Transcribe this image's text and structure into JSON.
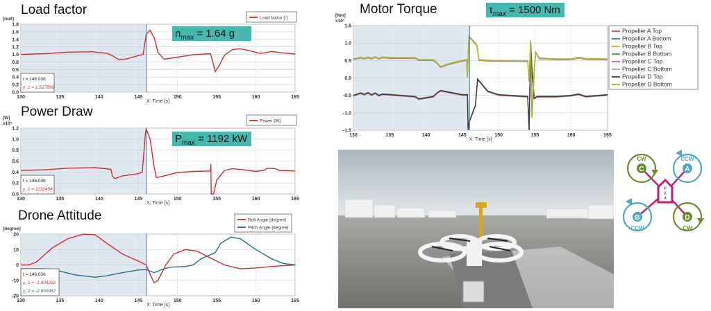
{
  "panels": {
    "load_factor": {
      "title": "Load factor",
      "badge_main": "n",
      "badge_sub": "max",
      "badge_rest": " = 1.64 g"
    },
    "power": {
      "title": "Power Draw",
      "badge_main": "P",
      "badge_sub": "max",
      "badge_rest": " = 1192 kW"
    },
    "attitude": {
      "title": "Drone Attitude"
    },
    "torque": {
      "title": "Motor Torque",
      "badge_main": "τ",
      "badge_sub": "max",
      "badge_rest": " =  1500 Nm"
    }
  },
  "quad_diagram": {
    "rotors": [
      {
        "letter": "C",
        "dir": "CW",
        "color": "#6b8c2a"
      },
      {
        "letter": "A",
        "dir": "CCW",
        "color": "#4aa8c8"
      },
      {
        "letter": "B",
        "dir": "CCW",
        "color": "#4aa8c8"
      },
      {
        "letter": "D",
        "dir": "CW",
        "color": "#6b8c2a"
      }
    ],
    "body_label": [
      "P",
      "X",
      "4"
    ],
    "arm_color": "#c2206c"
  },
  "chart_data": [
    {
      "id": "load_factor",
      "type": "line",
      "ylabel": "[null]",
      "xlabel": "X: Time [s]",
      "xlim": [
        130,
        165
      ],
      "xticks": [
        130,
        135,
        140,
        145,
        150,
        155,
        160,
        165
      ],
      "ylim": [
        0,
        1.8
      ],
      "yticks": [
        "0.0",
        "0.2",
        "0.4",
        "0.6",
        "0.8",
        "1.0",
        "1.2",
        "1.4",
        "1.6",
        "1.8"
      ],
      "grid": true,
      "legend": "top-right",
      "cursor": {
        "t": 146.036,
        "labels": [
          "t    = 146.036",
          "y_1 = 1.527896"
        ]
      },
      "series": [
        {
          "name": "Load factor [-]",
          "color": "#d42a2a",
          "points": [
            [
              130,
              1.0
            ],
            [
              133,
              1.02
            ],
            [
              136,
              1.06
            ],
            [
              139,
              1.07
            ],
            [
              141,
              1.03
            ],
            [
              141.8,
              0.95
            ],
            [
              142.5,
              0.86
            ],
            [
              143.5,
              0.88
            ],
            [
              145,
              0.97
            ],
            [
              145.6,
              1.0
            ],
            [
              146,
              1.53
            ],
            [
              146.5,
              1.64
            ],
            [
              147,
              1.45
            ],
            [
              147.5,
              1.05
            ],
            [
              148.3,
              0.87
            ],
            [
              150,
              0.93
            ],
            [
              152,
              0.99
            ],
            [
              154.2,
              1.02
            ],
            [
              154.5,
              0.8
            ],
            [
              154.8,
              0.54
            ],
            [
              155.3,
              0.7
            ],
            [
              156,
              0.98
            ],
            [
              157,
              1.13
            ],
            [
              158,
              1.15
            ],
            [
              159,
              1.11
            ],
            [
              160.5,
              1.03
            ],
            [
              161,
              1.04
            ],
            [
              162,
              1.08
            ],
            [
              163,
              1.05
            ],
            [
              165,
              1.01
            ]
          ]
        }
      ]
    },
    {
      "id": "power",
      "type": "line",
      "ylabel": "[W]",
      "yscale_label": "x10⁶",
      "xlabel": "X: Time [s]",
      "xlim": [
        130,
        165
      ],
      "xticks": [
        130,
        135,
        140,
        145,
        150,
        155,
        160,
        165
      ],
      "ylim": [
        0,
        1.2
      ],
      "yticks": [
        "0.0",
        "0.2",
        "0.4",
        "0.6",
        "0.8",
        "1.0",
        "1.2"
      ],
      "grid": true,
      "legend": "top-right",
      "cursor": {
        "t": 146.036,
        "labels": [
          "t    = 146.036",
          "y_1 = 1132454"
        ]
      },
      "series": [
        {
          "name": "Power [W]",
          "color": "#d42a2a",
          "points": [
            [
              130,
              0.43
            ],
            [
              133,
              0.44
            ],
            [
              136,
              0.47
            ],
            [
              139.5,
              0.48
            ],
            [
              141.5,
              0.45
            ],
            [
              141.7,
              0.32
            ],
            [
              142,
              0.28
            ],
            [
              143,
              0.33
            ],
            [
              145,
              0.37
            ],
            [
              145.5,
              0.4
            ],
            [
              145.9,
              1.1
            ],
            [
              146,
              1.19
            ],
            [
              146.5,
              1.0
            ],
            [
              147,
              0.5
            ],
            [
              147.3,
              0.3
            ],
            [
              148,
              0.32
            ],
            [
              150,
              0.39
            ],
            [
              152,
              0.41
            ],
            [
              154.2,
              0.42
            ],
            [
              154.25,
              0.55
            ],
            [
              154.3,
              0.0
            ],
            [
              154.6,
              0.0
            ],
            [
              155,
              0.25
            ],
            [
              156,
              0.43
            ],
            [
              157,
              0.46
            ],
            [
              158,
              0.45
            ],
            [
              160,
              0.41
            ],
            [
              161,
              0.43
            ],
            [
              161.5,
              0.47
            ],
            [
              162.5,
              0.46
            ],
            [
              163,
              0.43
            ],
            [
              165,
              0.42
            ]
          ]
        }
      ]
    },
    {
      "id": "attitude",
      "type": "line",
      "ylabel": "[degree]",
      "xlabel": "X: Time [s]",
      "xlim": [
        130,
        165
      ],
      "xticks": [
        130,
        135,
        140,
        145,
        150,
        155,
        160,
        165
      ],
      "ylim": [
        -20,
        20
      ],
      "yticks": [
        "-20",
        "-10",
        "0",
        "10",
        "20"
      ],
      "grid": true,
      "legend": "top-right",
      "cursor": {
        "t": 146.036,
        "labels": [
          "t    = 146.036",
          "y_1 = -1.804222",
          "y_2 = -2.890962"
        ]
      },
      "series": [
        {
          "name": "Roll Angle [degree]",
          "color": "#d42a2a",
          "points": [
            [
              130,
              0
            ],
            [
              131,
              0
            ],
            [
              132,
              2
            ],
            [
              134,
              11
            ],
            [
              136,
              17
            ],
            [
              138,
              20
            ],
            [
              139.5,
              19.5
            ],
            [
              141,
              14
            ],
            [
              143,
              7
            ],
            [
              145,
              2.5
            ],
            [
              146,
              0
            ],
            [
              146.5,
              -6
            ],
            [
              147,
              -11.5
            ],
            [
              147.5,
              -10
            ],
            [
              148.5,
              0
            ],
            [
              149.5,
              7
            ],
            [
              151,
              10
            ],
            [
              152.5,
              9
            ],
            [
              154,
              5
            ],
            [
              156,
              0
            ],
            [
              158,
              -2.5
            ],
            [
              160,
              -2
            ],
            [
              162,
              -1
            ],
            [
              165,
              0
            ]
          ]
        },
        {
          "name": "Pitch Angle [degree]",
          "color": "#1f6f82",
          "points": [
            [
              130,
              -2.5
            ],
            [
              133,
              -2.5
            ],
            [
              135,
              -4
            ],
            [
              137,
              -6.5
            ],
            [
              139.5,
              -8
            ],
            [
              141,
              -7
            ],
            [
              143,
              -5
            ],
            [
              145,
              -3.3
            ],
            [
              146,
              -3
            ],
            [
              147,
              -5
            ],
            [
              148,
              -3
            ],
            [
              149,
              -1.5
            ],
            [
              151,
              -1
            ],
            [
              152,
              0
            ],
            [
              153,
              4
            ],
            [
              154.8,
              8
            ],
            [
              155.5,
              14
            ],
            [
              156.8,
              18
            ],
            [
              158,
              17
            ],
            [
              160,
              10
            ],
            [
              162,
              4
            ],
            [
              163.5,
              1
            ],
            [
              165,
              0
            ]
          ]
        }
      ]
    },
    {
      "id": "torque",
      "type": "line",
      "ylabel": "[Nm]",
      "yscale_label": "x10³",
      "xlabel": "X: Time [s]",
      "xlim": [
        130,
        165
      ],
      "xticks": [
        130,
        135,
        140,
        145,
        150,
        155,
        160,
        165
      ],
      "ylim": [
        -1.5,
        1.5
      ],
      "yticks": [
        "-1.5",
        "-1.0",
        "-0.5",
        "0.0",
        "0.5",
        "1.0",
        "1.5"
      ],
      "grid": true,
      "legend": "right",
      "cursor": {
        "t": 146.0,
        "labels": []
      },
      "profiles": {
        "upper": [
          [
            130,
            0.52
          ],
          [
            131,
            0.57
          ],
          [
            131.5,
            0.54
          ],
          [
            132,
            0.58
          ],
          [
            132.5,
            0.54
          ],
          [
            133,
            0.59
          ],
          [
            133.5,
            0.54
          ],
          [
            134,
            0.58
          ],
          [
            135,
            0.56
          ],
          [
            138.5,
            0.56
          ],
          [
            139,
            0.5
          ],
          [
            141,
            0.5
          ],
          [
            141.5,
            0.42
          ],
          [
            142,
            0.3
          ],
          [
            143,
            0.38
          ],
          [
            145,
            0.48
          ],
          [
            145.6,
            0.5
          ],
          [
            145.7,
            0.0
          ],
          [
            145.9,
            1.18
          ],
          [
            146.5,
            1.05
          ],
          [
            147,
            0.92
          ],
          [
            147.3,
            0.5
          ],
          [
            149,
            0.48
          ],
          [
            154,
            0.47
          ],
          [
            154.2,
            -0.1
          ],
          [
            154.4,
            1.05
          ],
          [
            154.6,
            -1.15
          ],
          [
            154.9,
            0.2
          ],
          [
            155.1,
            0.72
          ],
          [
            155.6,
            0.55
          ],
          [
            158,
            0.52
          ],
          [
            160,
            0.52
          ],
          [
            161,
            0.57
          ],
          [
            162,
            0.53
          ],
          [
            165,
            0.52
          ]
        ],
        "lower": [
          [
            130,
            -0.52
          ],
          [
            131,
            -0.45
          ],
          [
            131.5,
            -0.49
          ],
          [
            132,
            -0.44
          ],
          [
            132.5,
            -0.5
          ],
          [
            133,
            -0.45
          ],
          [
            133.5,
            -0.52
          ],
          [
            134,
            -0.48
          ],
          [
            138.5,
            -0.55
          ],
          [
            139,
            -0.62
          ],
          [
            141,
            -0.55
          ],
          [
            141.5,
            -0.45
          ],
          [
            142,
            -0.38
          ],
          [
            143,
            -0.42
          ],
          [
            145,
            -0.5
          ],
          [
            145.7,
            -0.5
          ],
          [
            145.8,
            -1.5
          ],
          [
            146,
            -1.25
          ],
          [
            146.8,
            -0.8
          ],
          [
            147.1,
            -0.05
          ],
          [
            147.5,
            -0.15
          ],
          [
            148.5,
            -0.4
          ],
          [
            150,
            -0.5
          ],
          [
            154,
            -0.55
          ],
          [
            154.2,
            -1.5
          ],
          [
            154.4,
            1.0
          ],
          [
            154.6,
            0.2
          ],
          [
            154.9,
            -0.6
          ],
          [
            155.3,
            -0.55
          ],
          [
            158,
            -0.55
          ],
          [
            160,
            -0.52
          ],
          [
            161,
            -0.48
          ],
          [
            162,
            -0.55
          ],
          [
            165,
            -0.5
          ]
        ]
      },
      "series": [
        {
          "name": "Propeller A Top",
          "color": "#e0463c",
          "profile": "upper"
        },
        {
          "name": "Propeller A Bottom",
          "color": "#2e7a8c",
          "profile": "lower"
        },
        {
          "name": "Propeller B Top",
          "color": "#e8a020",
          "profile": "upper"
        },
        {
          "name": "Propeller B Bottom",
          "color": "#3a9a4a",
          "profile": "lower"
        },
        {
          "name": "Propeller C Top",
          "color": "#d06080",
          "profile": "lower"
        },
        {
          "name": "Propeller C Bottom",
          "color": "#a0a0a0",
          "profile": "upper"
        },
        {
          "name": "Propeller D Top",
          "color": "#3c3c3c",
          "profile": "lower"
        },
        {
          "name": "Propeller D Bottom",
          "color": "#a8b828",
          "profile": "upper"
        }
      ]
    }
  ]
}
